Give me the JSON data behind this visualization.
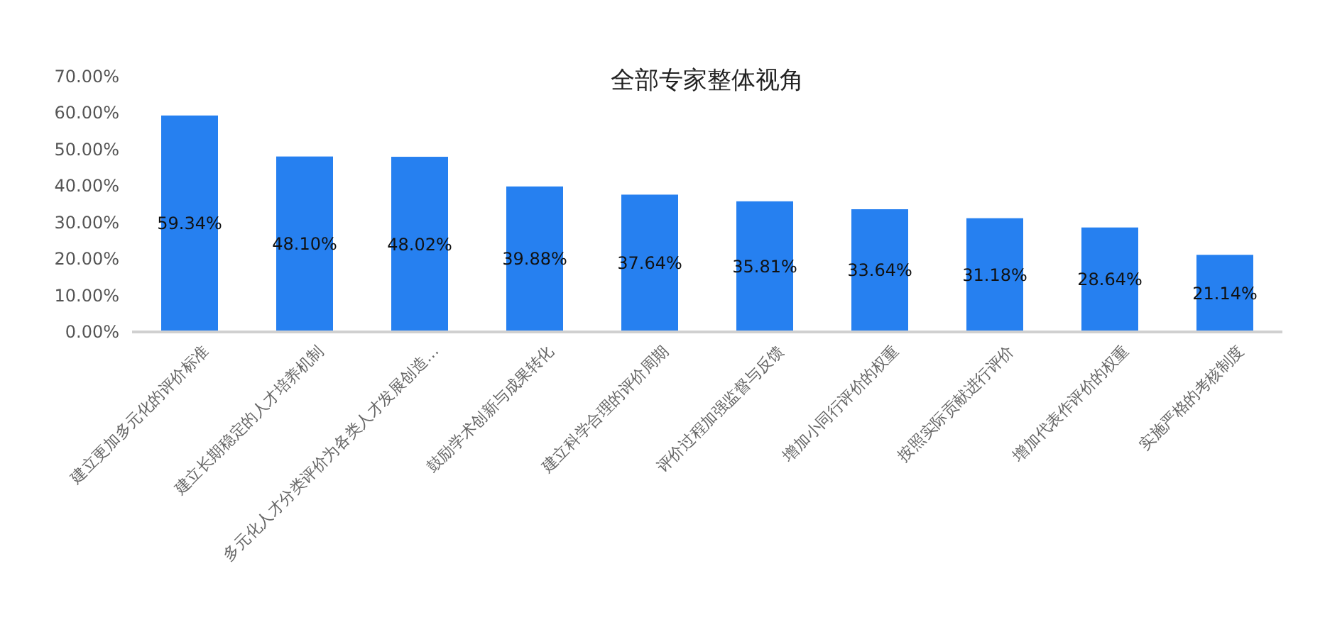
{
  "chart_data": {
    "type": "bar",
    "title": "全部专家整体视角",
    "categories": [
      "建立更加多元化的评价标准",
      "建立长期稳定的人才培养机制",
      "多元化人才分类评价为各类人才发展创造…",
      "鼓励学术创新与成果转化",
      "建立科学合理的评价周期",
      "评价过程加强监督与反馈",
      "增加小同行评价的权重",
      "按照实际贡献进行评价",
      "增加代表作评价的权重",
      "实施严格的考核制度"
    ],
    "values": [
      59.34,
      48.1,
      48.02,
      39.88,
      37.64,
      35.81,
      33.64,
      31.18,
      28.64,
      21.14
    ],
    "value_labels": [
      "59.34%",
      "48.10%",
      "48.02%",
      "39.88%",
      "37.64%",
      "35.81%",
      "33.64%",
      "31.18%",
      "28.64%",
      "21.14%"
    ],
    "color": "#2680f0",
    "ylim": [
      0,
      70
    ],
    "yticks": [
      {
        "value": 0,
        "label": "0.00%"
      },
      {
        "value": 10,
        "label": "10.00%"
      },
      {
        "value": 20,
        "label": "20.00%"
      },
      {
        "value": 30,
        "label": "30.00%"
      },
      {
        "value": 40,
        "label": "40.00%"
      },
      {
        "value": 50,
        "label": "50.00%"
      },
      {
        "value": 60,
        "label": "60.00%"
      },
      {
        "value": 70,
        "label": "70.00%"
      }
    ]
  }
}
